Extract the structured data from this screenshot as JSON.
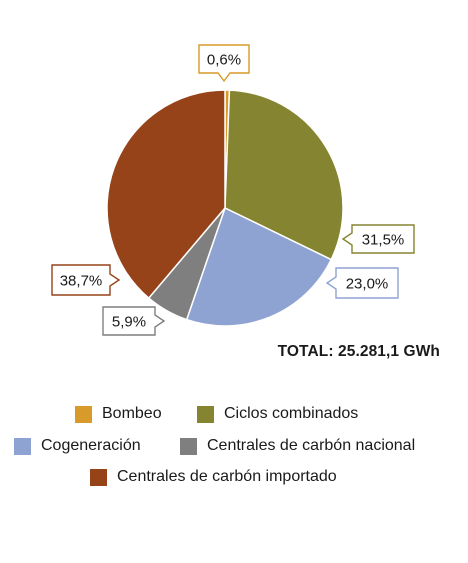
{
  "chart_data": {
    "type": "pie",
    "total_label": "TOTAL: 25.281,1 GWh",
    "slices": [
      {
        "name": "Bombeo",
        "value": 0.6,
        "label": "0,6%",
        "color": "#d89a2a"
      },
      {
        "name": "Ciclos combinados",
        "value": 31.5,
        "label": "31,5%",
        "color": "#858430"
      },
      {
        "name": "Cogeneración",
        "value": 23.0,
        "label": "23,0%",
        "color": "#8fa3d3"
      },
      {
        "name": "Centrales de carbón nacional",
        "value": 5.9,
        "label": "5,9%",
        "color": "#7f7f7f"
      },
      {
        "name": "Centrales de carbón importado",
        "value": 38.7,
        "label": "38,7%",
        "color": "#974319"
      }
    ]
  }
}
